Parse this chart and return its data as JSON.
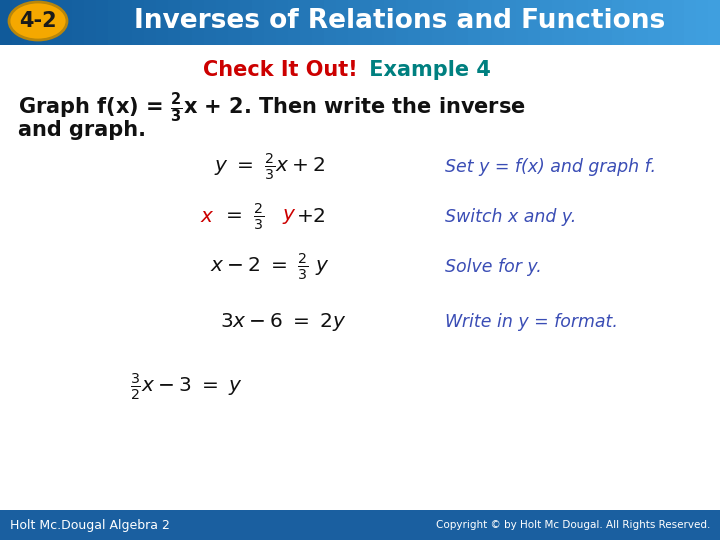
{
  "header_bg_color": "#1a7abf",
  "header_text": "Inverses of Relations and Functions",
  "header_text_color": "#ffffff",
  "badge_color": "#f5a800",
  "badge_text": "4-2",
  "badge_text_color": "#1a1a1a",
  "check_color": "#cc0000",
  "example_color": "#008080",
  "subtitle": "Check It Out!",
  "subtitle2": " Example 4",
  "body_bg": "#ffffff",
  "footer_bg": "#1a5fa0",
  "footer_left": "Holt Mc.Dougal Algebra 2",
  "footer_right": "Copyright © by Holt Mc Dougal. All Rights Reserved.",
  "footer_text_color": "#ffffff",
  "main_bold_color": "#111111",
  "red_color": "#cc0000",
  "blue_italic_color": "#3a4db5"
}
